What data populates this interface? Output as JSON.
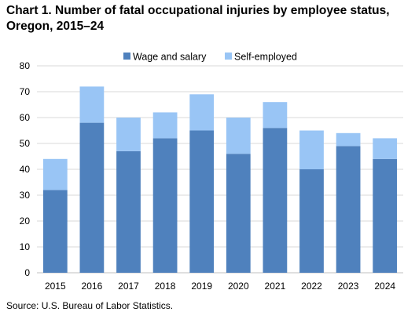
{
  "chart_data": {
    "type": "bar",
    "stacked": true,
    "title_line1": "Chart 1. Number of fatal occupational injuries by employee status,",
    "title_line2": "Oregon, 2015–24",
    "categories": [
      "2015",
      "2016",
      "2017",
      "2018",
      "2019",
      "2020",
      "2021",
      "2022",
      "2023",
      "2024"
    ],
    "series": [
      {
        "name": "Wage and salary",
        "color": "#4f81bd",
        "values": [
          32,
          58,
          47,
          52,
          55,
          46,
          56,
          40,
          49,
          44
        ]
      },
      {
        "name": "Self-employed",
        "color": "#99c5f5",
        "values": [
          12,
          14,
          13,
          10,
          14,
          14,
          10,
          15,
          5,
          8
        ]
      }
    ],
    "ylim": [
      0,
      80
    ],
    "yticks": [
      "0",
      "10",
      "20",
      "30",
      "40",
      "50",
      "60",
      "70",
      "80"
    ],
    "grid": true,
    "legend_position": "top-center",
    "source": "Source: U.S. Bureau of Labor Statistics."
  }
}
